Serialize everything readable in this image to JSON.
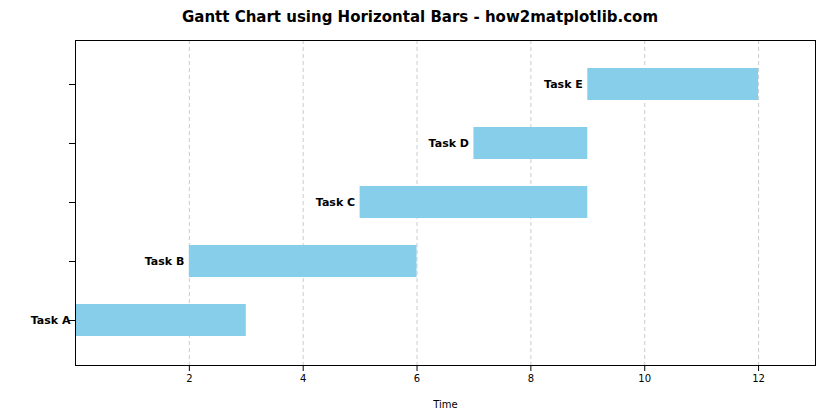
{
  "chart_data": {
    "type": "bar",
    "orientation": "horizontal",
    "title": "Gantt Chart using Horizontal Bars - how2matplotlib.com",
    "xlabel": "Time",
    "categories": [
      "Task A",
      "Task B",
      "Task C",
      "Task D",
      "Task E"
    ],
    "starts": [
      0,
      2,
      5,
      7,
      9
    ],
    "durations": [
      3,
      4,
      4,
      2,
      3
    ],
    "color": "#87CEEB",
    "xlim": [
      0,
      13
    ],
    "xticks": [
      2,
      4,
      6,
      8,
      10,
      12
    ],
    "grid": true,
    "tick_labels": "x"
  }
}
